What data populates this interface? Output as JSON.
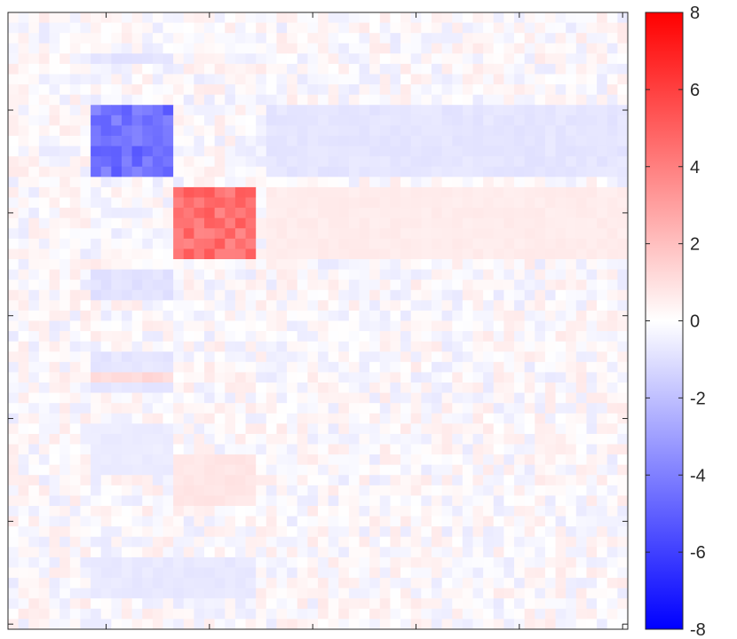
{
  "chart_data": {
    "type": "heatmap",
    "title": "",
    "xlabel": "",
    "ylabel": "",
    "grid_size": 60,
    "clim": [
      -8,
      8
    ],
    "colormap": {
      "low": "#0000ff",
      "mid": "#ffffff",
      "high": "#ff0000"
    },
    "colorbar": {
      "location": "right",
      "ticks": [
        8,
        6,
        4,
        2,
        0,
        -2,
        -4,
        -6,
        -8
      ],
      "tick_labels": [
        "8",
        "6",
        "4",
        "2",
        "0",
        "-2",
        "-4",
        "-6",
        "-8"
      ]
    },
    "x_ticks": [
      10,
      20,
      30,
      40,
      50,
      60
    ],
    "y_ticks": [
      10,
      20,
      30,
      40,
      50,
      60
    ],
    "show_tick_labels": false,
    "blocks": [
      {
        "rows": [
          9,
          16
        ],
        "cols": [
          8,
          16
        ],
        "value": -4.5
      },
      {
        "rows": [
          17,
          24
        ],
        "cols": [
          16,
          24
        ],
        "value": 4.5
      },
      {
        "rows": [
          9,
          16
        ],
        "cols": [
          25,
          60
        ],
        "value": -0.8
      },
      {
        "rows": [
          17,
          24
        ],
        "cols": [
          25,
          60
        ],
        "value": 0.6
      },
      {
        "rows": [
          25,
          28
        ],
        "cols": [
          8,
          16
        ],
        "value": -0.9
      },
      {
        "rows": [
          33,
          37
        ],
        "cols": [
          8,
          16
        ],
        "value": -0.8
      },
      {
        "rows": [
          35,
          36
        ],
        "cols": [
          8,
          16
        ],
        "value": 1.2
      },
      {
        "rows": [
          40,
          45
        ],
        "cols": [
          8,
          16
        ],
        "value": -0.6
      },
      {
        "rows": [
          43,
          48
        ],
        "cols": [
          16,
          24
        ],
        "value": 0.8
      },
      {
        "rows": [
          53,
          57
        ],
        "cols": [
          8,
          24
        ],
        "value": -0.7
      },
      {
        "rows": [
          4,
          5
        ],
        "cols": [
          8,
          16
        ],
        "value": -0.9
      }
    ],
    "noise_amplitude": 0.7
  }
}
